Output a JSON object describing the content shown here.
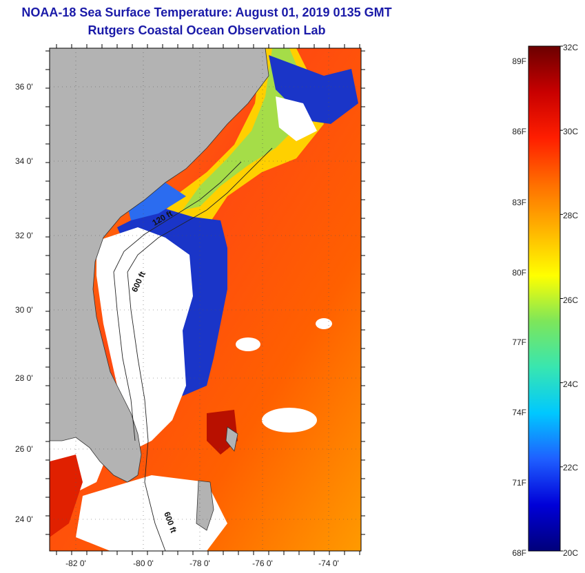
{
  "title": {
    "line1": "NOAA-18 Sea Surface Temperature:  August 01, 2019 0135 GMT",
    "line2": "Rutgers Coastal Ocean Observation Lab"
  },
  "map": {
    "latitude_labels": [
      "36 0'",
      "34 0'",
      "32 0'",
      "30 0'",
      "28 0'",
      "26 0'",
      "24 0'"
    ],
    "longitude_labels": [
      "-82 0'",
      "-80 0'",
      "-78 0'",
      "-76 0'",
      "-74 0'"
    ],
    "depth_contour_labels": [
      "600 ft",
      "120 ft",
      "600 ft"
    ],
    "colors": {
      "land": "#b3b3b3",
      "cloud": "#ffffff",
      "warm_sst": "#ff5a14",
      "cold_upwelling": "#1a35c8"
    }
  },
  "colorbar": {
    "fahrenheit_labels": [
      "89F",
      "86F",
      "83F",
      "80F",
      "77F",
      "74F",
      "71F",
      "68F"
    ],
    "celsius_labels": [
      "32C",
      "30C",
      "28C",
      "26C",
      "24C",
      "22C",
      "20C"
    ],
    "range_celsius": [
      20,
      32
    ],
    "gradient": [
      "#00007a",
      "#0000d8",
      "#1f5fff",
      "#00c8ff",
      "#38e6b0",
      "#7de65a",
      "#ffff00",
      "#ffb400",
      "#ff6e00",
      "#ff1e00",
      "#c80000",
      "#6b0000"
    ]
  }
}
